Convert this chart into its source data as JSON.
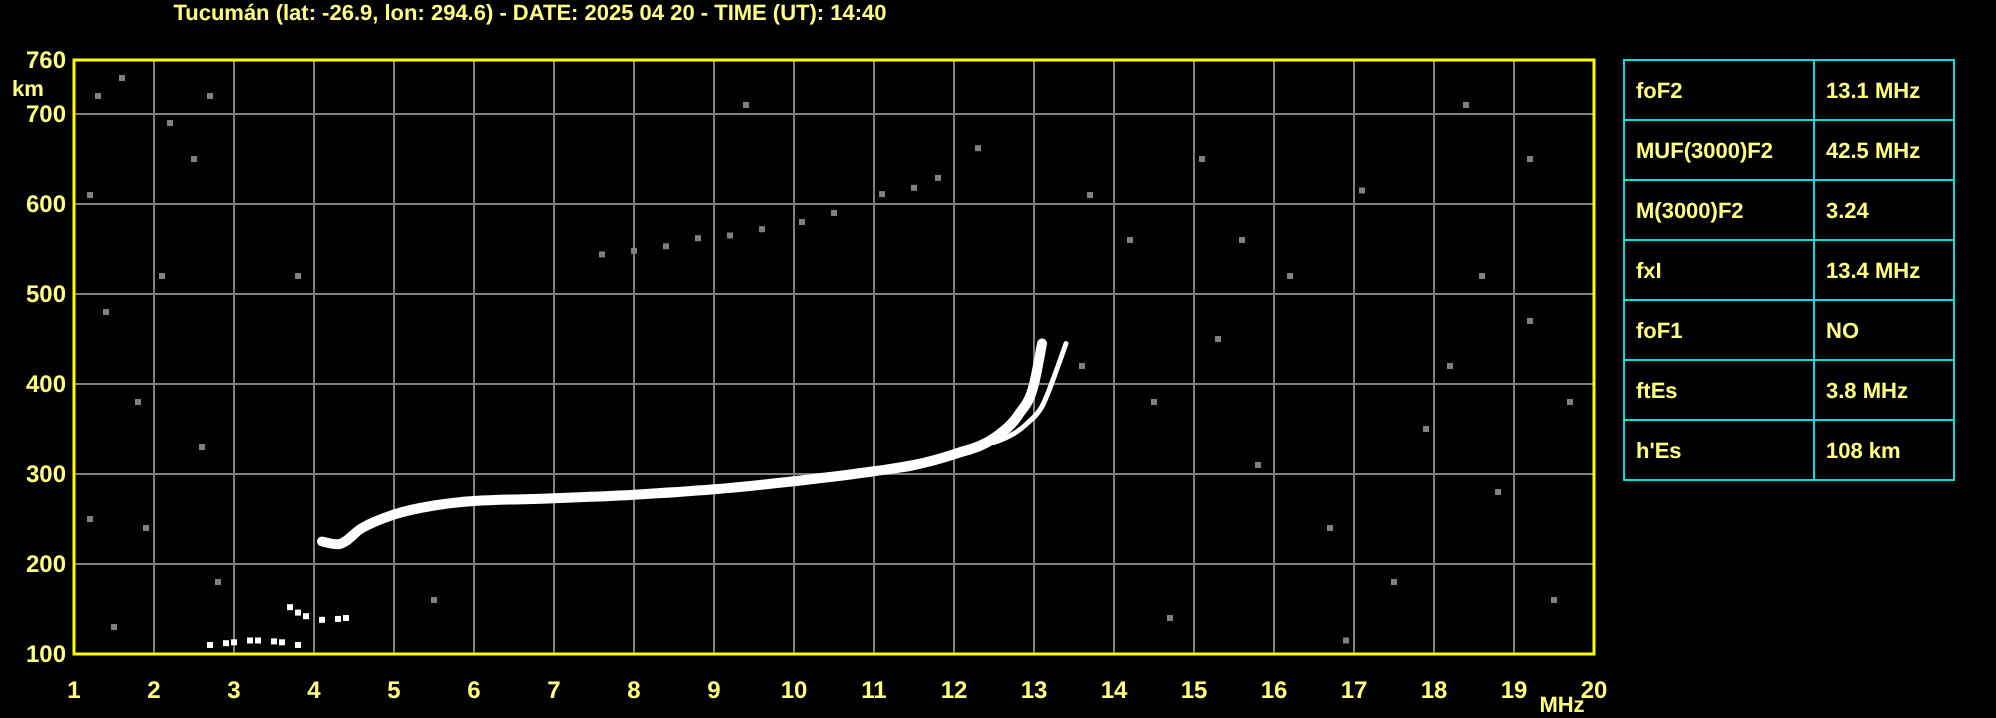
{
  "chart_data": [
    {
      "type": "scatter",
      "title": "Tucumán (lat: -26.9, lon: 294.6) - DATE: 2025 04 20 - TIME (UT): 14:40",
      "xlabel": "MHz",
      "ylabel": "km",
      "xlim": [
        1,
        20
      ],
      "ylim": [
        100,
        760
      ],
      "xticks": [
        1,
        2,
        3,
        4,
        5,
        6,
        7,
        8,
        9,
        10,
        11,
        12,
        13,
        14,
        15,
        16,
        17,
        18,
        19,
        20
      ],
      "yticks": [
        100,
        200,
        300,
        400,
        500,
        600,
        700,
        760
      ],
      "grid": true,
      "marker": "square",
      "series": [
        {
          "type": "line",
          "marker": "none",
          "color": "#ffffff",
          "x": [
            4.1,
            4.3,
            4.6,
            5,
            5.5,
            6,
            7,
            8,
            9,
            10,
            11,
            11.5,
            12,
            12.5,
            12.8,
            13,
            13.1
          ],
          "values": [
            225,
            222,
            240,
            255,
            265,
            270,
            273,
            277,
            283,
            292,
            303,
            310,
            322,
            340,
            365,
            400,
            445
          ]
        },
        {
          "type": "line",
          "marker": "none",
          "color": "#ffffff",
          "x": [
            12.5,
            12.9,
            13.1,
            13.3,
            13.4
          ],
          "values": [
            335,
            355,
            375,
            420,
            445
          ]
        },
        {
          "color": "#ffffff",
          "x": [
            2.7,
            2.9,
            3.0,
            3.2,
            3.3,
            3.5,
            3.6,
            3.8,
            3.7,
            3.8,
            3.9,
            4.1,
            4.3,
            4.4
          ],
          "values": [
            110,
            112,
            113,
            115,
            115,
            114,
            113,
            110,
            152,
            146,
            142,
            138,
            139,
            140
          ]
        },
        {
          "color": "#808080",
          "x": [
            7.6,
            8.0,
            8.4,
            8.8,
            9.2,
            9.6,
            10.1,
            10.5,
            11.1,
            11.5,
            11.8,
            12.3
          ],
          "values": [
            544,
            548,
            553,
            562,
            565,
            572,
            580,
            590,
            611,
            618,
            629,
            662
          ]
        },
        {
          "color": "#808080",
          "x": [
            1.3,
            1.6,
            2.2,
            2.5,
            1.2,
            2.7,
            1.4,
            2.1,
            1.8,
            2.6,
            1.2,
            1.9,
            2.8,
            1.5,
            13.6,
            14.5,
            15.3,
            16.2,
            17.1,
            18.4,
            19.2,
            15.8,
            16.7,
            17.5,
            18.8,
            19.5,
            14.2,
            15.1,
            18.2,
            19.7,
            16.9,
            14.7,
            17.9,
            3.8,
            5.5,
            9.4,
            13.7,
            18.6,
            15.6,
            19.2
          ],
          "values": [
            720,
            740,
            690,
            650,
            610,
            720,
            480,
            520,
            380,
            330,
            250,
            240,
            180,
            130,
            420,
            380,
            450,
            520,
            615,
            710,
            650,
            310,
            240,
            180,
            280,
            160,
            560,
            650,
            420,
            380,
            115,
            140,
            350,
            520,
            160,
            710,
            610,
            520,
            560,
            470
          ]
        }
      ]
    },
    {
      "type": "other",
      "categories": [
        "foF2",
        "MUF(3000)F2",
        "M(3000)F2",
        "fxI",
        "foF1",
        "ftEs",
        "h'Es"
      ],
      "value_labels": [
        "13.1 MHz",
        "42.5 MHz",
        "3.24",
        "13.4 MHz",
        "NO",
        "3.8 MHz",
        "108 km"
      ]
    }
  ]
}
